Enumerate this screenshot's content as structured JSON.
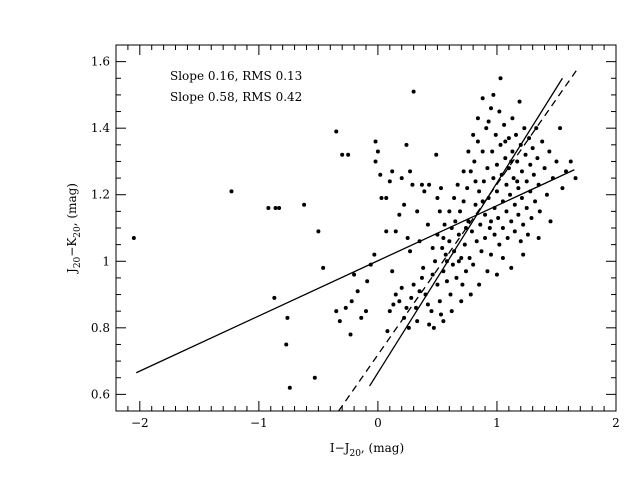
{
  "chart_data": {
    "type": "scatter",
    "xlabel": {
      "main": "I−J",
      "sub": "20",
      "tail": ", (mag)"
    },
    "ylabel": {
      "a": "J",
      "a_sub": "20",
      "mid": "−K",
      "b_sub": "20",
      "tail": ", (mag)"
    },
    "xlim": [
      -2.2,
      2.0
    ],
    "ylim": [
      0.55,
      1.65
    ],
    "xticks": [
      -2,
      -1,
      0,
      1,
      2
    ],
    "xtick_labels": [
      "−2",
      "−1",
      "0",
      "1",
      "2"
    ],
    "yticks": [
      0.6,
      0.8,
      1.0,
      1.2,
      1.4,
      1.6
    ],
    "ytick_labels": [
      "0.6",
      "0.8",
      "1",
      "1.2",
      "1.4",
      "1.6"
    ],
    "annotations": [
      "Slope  0.16,  RMS  0.13",
      "Slope  0.58,  RMS  0.42"
    ],
    "grid": false,
    "fit_lines": [
      {
        "style": "solid",
        "points": [
          [
            -2.03,
            0.665
          ],
          [
            1.65,
            1.275
          ]
        ]
      },
      {
        "style": "solid",
        "points": [
          [
            -0.07,
            0.625
          ],
          [
            1.55,
            1.55
          ]
        ]
      },
      {
        "style": "dashed",
        "points": [
          [
            -0.33,
            0.55
          ],
          [
            1.68,
            1.58
          ]
        ]
      }
    ],
    "points": [
      [
        -2.05,
        1.07
      ],
      [
        -1.23,
        1.21
      ],
      [
        -0.92,
        1.16
      ],
      [
        -0.86,
        1.16
      ],
      [
        -0.83,
        1.16
      ],
      [
        -0.62,
        1.17
      ],
      [
        -0.87,
        0.89
      ],
      [
        -0.76,
        0.83
      ],
      [
        -0.77,
        0.75
      ],
      [
        -0.74,
        0.62
      ],
      [
        -0.53,
        0.65
      ],
      [
        -0.5,
        1.09
      ],
      [
        -0.46,
        0.98
      ],
      [
        -0.35,
        1.39
      ],
      [
        -0.3,
        1.32
      ],
      [
        -0.25,
        1.32
      ],
      [
        -0.35,
        0.85
      ],
      [
        -0.32,
        0.82
      ],
      [
        -0.27,
        0.86
      ],
      [
        -0.23,
        0.78
      ],
      [
        -0.22,
        0.88
      ],
      [
        -0.2,
        0.96
      ],
      [
        -0.17,
        0.91
      ],
      [
        -0.14,
        0.83
      ],
      [
        -0.1,
        0.85
      ],
      [
        -0.09,
        0.94
      ],
      [
        -0.06,
        0.99
      ],
      [
        -0.03,
        1.02
      ],
      [
        -0.02,
        1.36
      ],
      [
        0.0,
        1.33
      ],
      [
        -0.02,
        1.3
      ],
      [
        0.02,
        1.26
      ],
      [
        0.03,
        1.19
      ],
      [
        0.07,
        1.19
      ],
      [
        0.1,
        1.24
      ],
      [
        0.12,
        1.27
      ],
      [
        0.07,
        1.09
      ],
      [
        0.12,
        0.97
      ],
      [
        0.15,
        1.09
      ],
      [
        0.18,
        1.14
      ],
      [
        0.2,
        1.25
      ],
      [
        0.24,
        1.35
      ],
      [
        0.27,
        1.27
      ],
      [
        0.29,
        1.23
      ],
      [
        0.22,
        1.17
      ],
      [
        0.25,
        1.07
      ],
      [
        0.27,
        1.03
      ],
      [
        0.3,
        1.51
      ],
      [
        0.33,
        1.15
      ],
      [
        0.35,
        1.06
      ],
      [
        0.37,
        1.23
      ],
      [
        0.39,
        1.21
      ],
      [
        0.42,
        1.11
      ],
      [
        0.43,
        1.23
      ],
      [
        0.46,
        1.04
      ],
      [
        0.49,
        1.32
      ],
      [
        0.5,
        1.19
      ],
      [
        0.52,
        1.15
      ],
      [
        0.53,
        1.22
      ],
      [
        0.55,
        1.07
      ],
      [
        0.56,
        1.11
      ],
      [
        0.08,
        0.79
      ],
      [
        0.1,
        0.85
      ],
      [
        0.13,
        0.87
      ],
      [
        0.15,
        0.9
      ],
      [
        0.18,
        0.88
      ],
      [
        0.2,
        0.92
      ],
      [
        0.22,
        0.83
      ],
      [
        0.24,
        0.86
      ],
      [
        0.26,
        0.8
      ],
      [
        0.28,
        0.89
      ],
      [
        0.3,
        0.93
      ],
      [
        0.32,
        0.86
      ],
      [
        0.33,
        0.82
      ],
      [
        0.35,
        0.91
      ],
      [
        0.37,
        0.95
      ],
      [
        0.38,
        0.98
      ],
      [
        0.4,
        0.9
      ],
      [
        0.42,
        0.87
      ],
      [
        0.43,
        0.81
      ],
      [
        0.45,
        0.85
      ],
      [
        0.46,
        0.96
      ],
      [
        0.48,
        1.0
      ],
      [
        0.5,
        0.93
      ],
      [
        0.52,
        0.88
      ],
      [
        0.53,
        0.84
      ],
      [
        0.55,
        0.97
      ],
      [
        0.57,
        1.02
      ],
      [
        0.58,
        0.94
      ],
      [
        0.6,
        1.06
      ],
      [
        0.61,
        0.9
      ],
      [
        0.63,
        0.99
      ],
      [
        0.64,
        1.03
      ],
      [
        0.65,
        1.12
      ],
      [
        0.66,
        0.95
      ],
      [
        0.68,
        1.08
      ],
      [
        0.69,
        1.15
      ],
      [
        0.7,
        1.01
      ],
      [
        0.71,
        0.93
      ],
      [
        0.72,
        1.18
      ],
      [
        0.73,
        1.05
      ],
      [
        0.74,
        0.97
      ],
      [
        0.75,
        1.22
      ],
      [
        0.76,
        1.12
      ],
      [
        0.77,
        1.01
      ],
      [
        0.78,
        1.27
      ],
      [
        0.79,
        1.09
      ],
      [
        0.8,
        0.99
      ],
      [
        0.81,
        1.3
      ],
      [
        0.82,
        1.17
      ],
      [
        0.83,
        1.06
      ],
      [
        0.84,
        1.36
      ],
      [
        0.85,
        1.21
      ],
      [
        0.86,
        1.11
      ],
      [
        0.87,
        1.03
      ],
      [
        0.88,
        1.33
      ],
      [
        0.89,
        1.24
      ],
      [
        0.9,
        1.14
      ],
      [
        0.9,
        1.07
      ],
      [
        0.91,
        1.4
      ],
      [
        0.92,
        1.28
      ],
      [
        0.93,
        1.19
      ],
      [
        0.94,
        1.1
      ],
      [
        0.95,
        1.02
      ],
      [
        0.95,
        1.46
      ],
      [
        0.96,
        1.33
      ],
      [
        0.97,
        1.25
      ],
      [
        0.98,
        1.16
      ],
      [
        0.98,
        1.08
      ],
      [
        0.99,
        1.38
      ],
      [
        1.0,
        1.29
      ],
      [
        1.0,
        1.21
      ],
      [
        1.01,
        1.13
      ],
      [
        1.02,
        1.05
      ],
      [
        1.03,
        1.55
      ],
      [
        1.03,
        1.35
      ],
      [
        1.04,
        1.26
      ],
      [
        1.05,
        1.18
      ],
      [
        1.05,
        1.1
      ],
      [
        1.06,
        1.41
      ],
      [
        1.07,
        1.31
      ],
      [
        1.08,
        1.23
      ],
      [
        1.08,
        1.15
      ],
      [
        1.09,
        1.07
      ],
      [
        1.1,
        1.37
      ],
      [
        1.1,
        1.28
      ],
      [
        1.11,
        1.2
      ],
      [
        1.12,
        1.12
      ],
      [
        1.13,
        1.43
      ],
      [
        1.13,
        1.33
      ],
      [
        1.14,
        1.25
      ],
      [
        1.15,
        1.17
      ],
      [
        1.15,
        1.09
      ],
      [
        1.16,
        1.38
      ],
      [
        1.17,
        1.3
      ],
      [
        1.18,
        1.22
      ],
      [
        1.18,
        1.14
      ],
      [
        1.19,
        1.48
      ],
      [
        1.2,
        1.35
      ],
      [
        1.21,
        1.27
      ],
      [
        1.21,
        1.19
      ],
      [
        1.22,
        1.11
      ],
      [
        1.23,
        1.4
      ],
      [
        1.24,
        1.32
      ],
      [
        1.25,
        1.24
      ],
      [
        1.25,
        1.16
      ],
      [
        1.26,
        1.08
      ],
      [
        1.27,
        1.37
      ],
      [
        1.28,
        1.29
      ],
      [
        1.28,
        1.21
      ],
      [
        1.29,
        1.13
      ],
      [
        1.3,
        1.34
      ],
      [
        1.31,
        1.26
      ],
      [
        1.32,
        1.18
      ],
      [
        1.33,
        1.4
      ],
      [
        1.34,
        1.31
      ],
      [
        1.35,
        1.23
      ],
      [
        1.36,
        1.15
      ],
      [
        1.38,
        1.36
      ],
      [
        1.4,
        1.28
      ],
      [
        1.42,
        1.2
      ],
      [
        1.44,
        1.33
      ],
      [
        1.47,
        1.25
      ],
      [
        1.5,
        1.3
      ],
      [
        1.53,
        1.4
      ],
      [
        1.55,
        1.22
      ],
      [
        1.58,
        1.27
      ],
      [
        1.62,
        1.3
      ],
      [
        1.66,
        1.25
      ],
      [
        1.45,
        1.12
      ],
      [
        1.35,
        1.07
      ],
      [
        1.22,
        1.02
      ],
      [
        1.12,
        0.98
      ],
      [
        1.0,
        0.96
      ],
      [
        0.92,
        0.97
      ],
      [
        0.85,
        0.93
      ],
      [
        0.78,
        0.9
      ],
      [
        0.7,
        0.88
      ],
      [
        0.62,
        0.85
      ],
      [
        0.55,
        0.82
      ],
      [
        0.47,
        0.8
      ],
      [
        0.6,
        1.15
      ],
      [
        0.64,
        1.19
      ],
      [
        0.67,
        1.23
      ],
      [
        0.72,
        1.27
      ],
      [
        0.76,
        1.33
      ],
      [
        0.8,
        1.38
      ],
      [
        0.84,
        1.43
      ],
      [
        0.88,
        1.49
      ],
      [
        0.93,
        1.42
      ],
      [
        0.97,
        1.5
      ],
      [
        1.02,
        1.45
      ],
      [
        1.07,
        1.36
      ],
      [
        1.12,
        1.3
      ],
      [
        1.17,
        1.24
      ],
      [
        1.2,
        1.06
      ],
      [
        1.05,
        1.01
      ],
      [
        0.95,
        1.12
      ],
      [
        0.88,
        1.18
      ],
      [
        0.82,
        1.24
      ],
      [
        0.74,
        1.1
      ],
      [
        0.68,
        1.0
      ],
      [
        0.62,
        1.1
      ],
      [
        0.58,
        1.0
      ],
      [
        0.54,
        1.04
      ],
      [
        0.5,
        1.08
      ]
    ]
  }
}
